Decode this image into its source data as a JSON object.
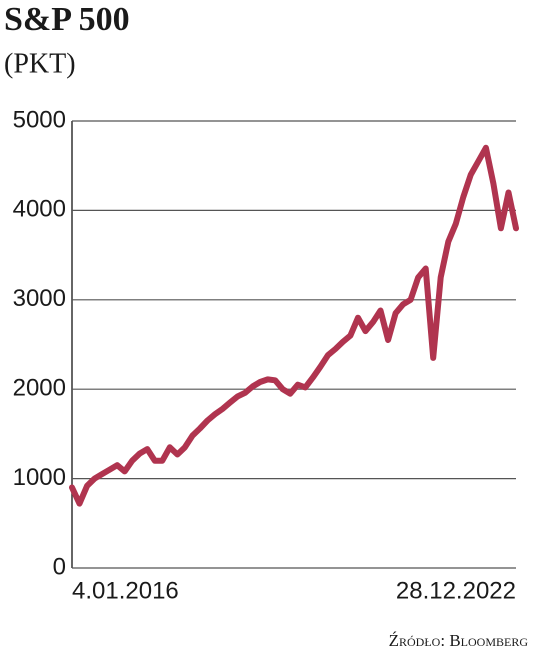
{
  "chart_data": {
    "type": "line",
    "title": "S&P 500",
    "subtitle": "(PKT)",
    "source": "Źródło: Bloomberg",
    "categories": [
      "4.01.2016",
      null,
      null,
      null,
      null,
      null,
      null,
      null,
      null,
      null,
      null,
      null,
      null,
      null,
      null,
      null,
      null,
      null,
      null,
      null,
      null,
      null,
      null,
      null,
      null,
      null,
      null,
      null,
      null,
      null,
      null,
      null,
      null,
      null,
      null,
      null,
      null,
      null,
      null,
      null,
      null,
      null,
      null,
      null,
      null,
      null,
      null,
      null,
      null,
      null,
      null,
      null,
      null,
      null,
      null,
      null,
      null,
      null,
      null,
      "28.12.2022"
    ],
    "series": [
      {
        "color": "#b0344f",
        "values": [
          900,
          720,
          920,
          1000,
          1050,
          1100,
          1150,
          1080,
          1200,
          1280,
          1330,
          1200,
          1200,
          1350,
          1270,
          1350,
          1480,
          1560,
          1650,
          1720,
          1780,
          1850,
          1920,
          1960,
          2030,
          2080,
          2110,
          2100,
          2000,
          1950,
          2050,
          2020,
          2130,
          2250,
          2380,
          2450,
          2530,
          2600,
          2800,
          2650,
          2750,
          2880,
          2550,
          2850,
          2950,
          3000,
          3250,
          3350,
          2350,
          3250,
          3650,
          3850,
          4150,
          4400,
          4550,
          4700,
          4300,
          3800,
          4200,
          3800
        ]
      }
    ],
    "ylim": [
      0,
      5000
    ],
    "yticks": [
      0,
      1000,
      2000,
      3000,
      4000,
      5000
    ],
    "grid": true
  }
}
